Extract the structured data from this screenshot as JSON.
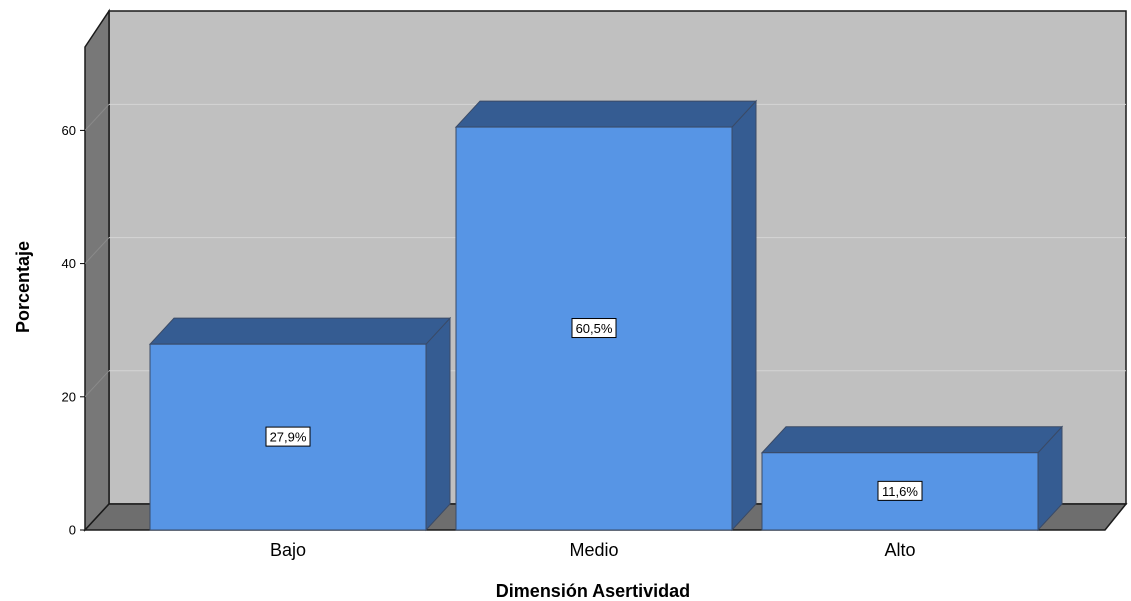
{
  "chart_data": {
    "type": "bar",
    "categories": [
      "Bajo",
      "Medio",
      "Alto"
    ],
    "values": [
      27.9,
      60.5,
      11.6
    ],
    "data_labels": [
      "27,9%",
      "60,5%",
      "11,6%"
    ],
    "xlabel": "Dimensión Asertividad",
    "ylabel": "Porcentaje",
    "ylim": [
      0,
      70
    ],
    "yticks": [
      0,
      20,
      40,
      60
    ],
    "ytick_labels": [
      "0",
      "20",
      "40",
      "60"
    ],
    "grid": true,
    "style": "3d",
    "colors": {
      "bar_front": "#5795e5",
      "bar_top": "#355c92",
      "bar_side": "#355c92",
      "bar_edge": "#3a4a66",
      "wall_back": "#c0c0c0",
      "wall_side": "#787878",
      "floor": "#6e6e6e",
      "gridline": "#d4d4d4",
      "outline": "#1a1a1a"
    }
  }
}
